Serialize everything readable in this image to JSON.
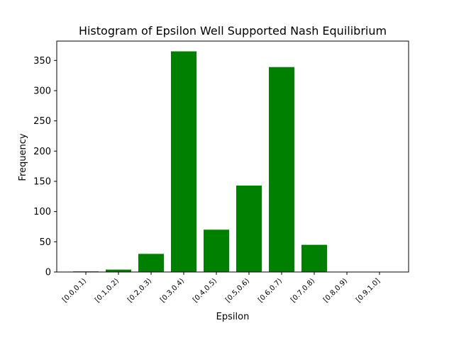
{
  "chart_data": {
    "type": "bar",
    "title": "Histogram of Epsilon Well Supported Nash Equilibrium",
    "xlabel": "Epsilon",
    "ylabel": "Frequency",
    "categories": [
      "[0.0,0.1)",
      "[0.1,0.2)",
      "[0.2,0.3)",
      "[0.3,0.4)",
      "[0.4,0.5)",
      "[0.5,0.6)",
      "[0.6,0.7)",
      "[0.7,0.8)",
      "[0.8,0.9)",
      "[0.9,1.0]"
    ],
    "values": [
      1,
      4,
      30,
      365,
      70,
      143,
      339,
      45,
      0,
      0
    ],
    "ylim": [
      0,
      382
    ],
    "yticks": [
      0,
      50,
      100,
      150,
      200,
      250,
      300,
      350
    ],
    "bar_color": "#008000",
    "grid": false,
    "legend": "none"
  }
}
